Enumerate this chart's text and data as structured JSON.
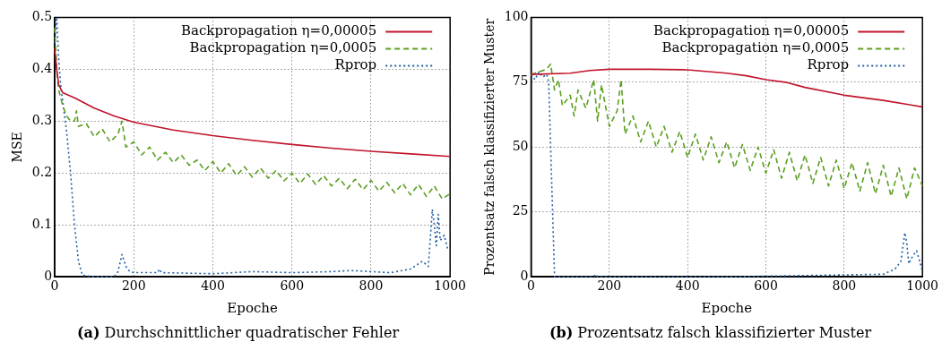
{
  "chart_data": [
    {
      "type": "line",
      "subtitle": "(a) Durchschnittlicher quadratischer Fehler",
      "xlabel": "Epoche",
      "ylabel": "MSE",
      "xlim": [
        0,
        1000
      ],
      "xticks": [
        0,
        200,
        400,
        600,
        800,
        1000
      ],
      "ylim": [
        0,
        0.5
      ],
      "yticks": [
        0,
        0.1,
        0.2,
        0.3,
        0.4,
        0.5
      ],
      "grid": true,
      "legend": "top right",
      "marker": "none",
      "series": [
        {
          "name": "Backpropagation η=0,00005",
          "color": "#c0142a",
          "line_style": "solid",
          "x": [
            0,
            5,
            10,
            20,
            50,
            100,
            150,
            200,
            300,
            400,
            500,
            600,
            700,
            800,
            900,
            1000
          ],
          "values": [
            0.44,
            0.4,
            0.37,
            0.355,
            0.345,
            0.325,
            0.31,
            0.298,
            0.283,
            0.272,
            0.263,
            0.255,
            0.248,
            0.242,
            0.237,
            0.232
          ]
        },
        {
          "name": "Backpropagation η=0,0005",
          "color": "#5a9e1f",
          "line_style": "dashed",
          "x": [
            0,
            5,
            10,
            20,
            30,
            40,
            50,
            55,
            60,
            80,
            100,
            120,
            140,
            160,
            170,
            180,
            200,
            220,
            240,
            260,
            280,
            300,
            320,
            340,
            360,
            380,
            400,
            420,
            440,
            460,
            480,
            500,
            520,
            540,
            560,
            580,
            600,
            620,
            640,
            660,
            680,
            700,
            720,
            740,
            760,
            780,
            800,
            820,
            840,
            860,
            880,
            900,
            920,
            940,
            960,
            980,
            1000
          ],
          "values": [
            0.48,
            0.4,
            0.36,
            0.33,
            0.31,
            0.3,
            0.3,
            0.32,
            0.29,
            0.295,
            0.27,
            0.285,
            0.26,
            0.275,
            0.3,
            0.25,
            0.26,
            0.235,
            0.25,
            0.225,
            0.24,
            0.22,
            0.235,
            0.215,
            0.225,
            0.205,
            0.222,
            0.2,
            0.218,
            0.195,
            0.212,
            0.192,
            0.21,
            0.19,
            0.205,
            0.185,
            0.2,
            0.18,
            0.198,
            0.178,
            0.195,
            0.175,
            0.19,
            0.17,
            0.188,
            0.168,
            0.186,
            0.165,
            0.182,
            0.162,
            0.18,
            0.158,
            0.178,
            0.155,
            0.175,
            0.15,
            0.16
          ]
        },
        {
          "name": "Rprop",
          "color": "#1f5fa0",
          "line_style": "dotted",
          "x": [
            0,
            5,
            10,
            15,
            20,
            30,
            40,
            50,
            60,
            70,
            100,
            150,
            160,
            170,
            180,
            190,
            200,
            260,
            265,
            270,
            400,
            500,
            600,
            700,
            750,
            800,
            850,
            900,
            930,
            945,
            955,
            960,
            965,
            970,
            975,
            985,
            995
          ],
          "values": [
            0.45,
            0.5,
            0.42,
            0.37,
            0.34,
            0.28,
            0.2,
            0.1,
            0.03,
            0.003,
            0,
            0,
            0.01,
            0.043,
            0.02,
            0.01,
            0.008,
            0.008,
            0.015,
            0.008,
            0.006,
            0.01,
            0.008,
            0.01,
            0.012,
            0.01,
            0.008,
            0.015,
            0.03,
            0.02,
            0.13,
            0.1,
            0.06,
            0.12,
            0.07,
            0.08,
            0.05
          ]
        }
      ]
    },
    {
      "type": "line",
      "subtitle": "(b) Prozentsatz falsch klassifizierter Muster",
      "xlabel": "Epoche",
      "ylabel": "Prozentsatz falsch klassifizierter Muster",
      "xlim": [
        0,
        1000
      ],
      "xticks": [
        0,
        200,
        400,
        600,
        800,
        1000
      ],
      "ylim": [
        0,
        100
      ],
      "yticks": [
        0,
        25,
        50,
        75,
        100
      ],
      "grid": true,
      "legend": "top right",
      "marker": "none",
      "series": [
        {
          "name": "Backpropagation η=0,00005",
          "color": "#c0142a",
          "line_style": "solid",
          "x": [
            0,
            100,
            150,
            200,
            300,
            400,
            500,
            550,
            600,
            650,
            700,
            800,
            900,
            1000
          ],
          "values": [
            78,
            78.5,
            79.5,
            80,
            80,
            79.8,
            78.5,
            77.5,
            76,
            75,
            73,
            70,
            68,
            65.5
          ]
        },
        {
          "name": "Backpropagation η=0,0005",
          "color": "#5a9e1f",
          "line_style": "dashed",
          "x": [
            0,
            20,
            40,
            50,
            60,
            70,
            80,
            100,
            110,
            120,
            140,
            160,
            170,
            180,
            200,
            220,
            230,
            240,
            260,
            280,
            300,
            320,
            340,
            360,
            380,
            400,
            420,
            440,
            460,
            480,
            500,
            520,
            540,
            560,
            580,
            600,
            620,
            640,
            660,
            680,
            700,
            720,
            740,
            760,
            780,
            800,
            820,
            840,
            860,
            880,
            900,
            920,
            940,
            960,
            980,
            1000
          ],
          "values": [
            78,
            79,
            80,
            82,
            72,
            76,
            66,
            70,
            62,
            72,
            65,
            76,
            60,
            74,
            58,
            64,
            76,
            55,
            62,
            52,
            60,
            50,
            58,
            48,
            56,
            46,
            55,
            45,
            54,
            44,
            52,
            42,
            51,
            41,
            50,
            40,
            49,
            38,
            48,
            37,
            47,
            36,
            46,
            35,
            45,
            34,
            44,
            33,
            44,
            32,
            43,
            31,
            42,
            30,
            42,
            35
          ]
        },
        {
          "name": "Rprop",
          "color": "#1f5fa0",
          "line_style": "dotted",
          "x": [
            0,
            10,
            20,
            30,
            40,
            45,
            50,
            55,
            60,
            160,
            165,
            170,
            500,
            700,
            900,
            930,
            945,
            955,
            960,
            965,
            975,
            985,
            995,
            1000
          ],
          "values": [
            78,
            76,
            79,
            77,
            78,
            75,
            50,
            25,
            0,
            0,
            1,
            0,
            0,
            0.5,
            1,
            3,
            6,
            17,
            13,
            5,
            8,
            10,
            5,
            2
          ]
        }
      ]
    }
  ]
}
